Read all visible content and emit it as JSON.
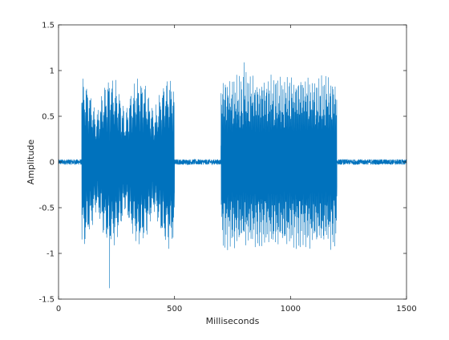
{
  "chart_data": {
    "type": "line",
    "title": "",
    "xlabel": "Milliseconds",
    "ylabel": "Amplitude",
    "xlim": [
      0,
      1500
    ],
    "ylim": [
      -1.5,
      1.5
    ],
    "x_ticks": [
      0,
      500,
      1000,
      1500
    ],
    "x_tick_labels": [
      "0",
      "500",
      "1000",
      "1500"
    ],
    "y_ticks": [
      -1.5,
      -1,
      -0.5,
      0,
      0.5,
      1,
      1.5
    ],
    "y_tick_labels": [
      "-1.5",
      "-1",
      "-0.5",
      "0",
      "0.5",
      "1",
      "1.5"
    ],
    "grid": false,
    "box": true,
    "series": [
      {
        "color": "#0072BD",
        "segments": [
          {
            "x_start": 0,
            "x_end": 100,
            "kind": "noise",
            "amplitude": 0.03
          },
          {
            "x_start": 100,
            "x_end": 500,
            "kind": "modulated_tone",
            "amplitude": 1.0
          },
          {
            "x_start": 500,
            "x_end": 700,
            "kind": "noise",
            "amplitude": 0.03
          },
          {
            "x_start": 700,
            "x_end": 1200,
            "kind": "dense_tone",
            "amplitude": 1.0
          },
          {
            "x_start": 1200,
            "x_end": 1500,
            "kind": "noise",
            "amplitude": 0.03
          }
        ],
        "extremes": [
          {
            "x": 220,
            "y": -1.38
          },
          {
            "x": 800,
            "y": 1.09
          }
        ]
      }
    ]
  }
}
